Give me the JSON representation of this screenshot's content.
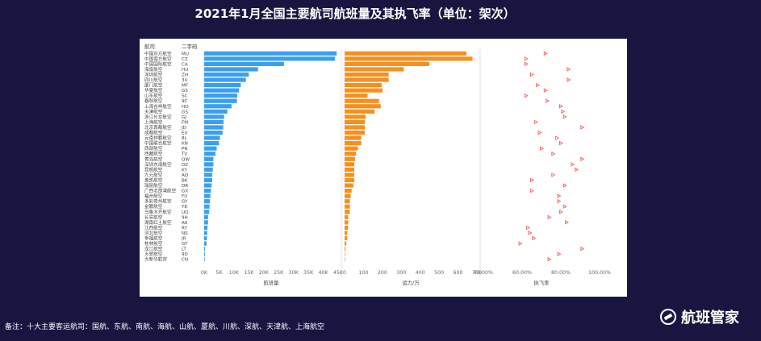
{
  "page": {
    "title": "2021年1月全国主要航司航班量及其执飞率（单位：架次）",
    "footnote": "备注：十大主要客运航司：国航、东航、南航、海航、山航、厦航、川航、深航、天津航、上海航空",
    "brand": "航班管家"
  },
  "chart_data": {
    "type": "bar",
    "columns": [
      "航司",
      "二字码"
    ],
    "airlines": [
      "中国东方航空",
      "中国南方航空",
      "中国国际航空",
      "海南航空",
      "深圳航空",
      "四川航空",
      "厦门航空",
      "华夏航空",
      "山东航空",
      "春秋航空",
      "上海吉祥航空",
      "天津航空",
      "浙江长龙航空",
      "上海航空",
      "北京首都航空",
      "成都航空",
      "云南祥鹏航空",
      "中国联合航空",
      "西部航空",
      "西藏航空",
      "青岛航空",
      "深圳东海航空",
      "昆明航空",
      "九元航空",
      "奥凯航空",
      "瑞丽航空",
      "广西北部湾航空",
      "福州航空",
      "多彩贵州航空",
      "金鹏航空",
      "乌鲁木齐航空",
      "长安航空",
      "湖南红土航空",
      "江西航空",
      "河北航空",
      "幸福航空",
      "桂林航空",
      "龙江航空",
      "天骄航空",
      "大新华航空"
    ],
    "codes": [
      "MU",
      "CZ",
      "CA",
      "HU",
      "ZH",
      "3U",
      "MF",
      "G5",
      "SC",
      "9C",
      "HO",
      "GS",
      "GJ",
      "FM",
      "JD",
      "EU",
      "8L",
      "KN",
      "PN",
      "TV",
      "QW",
      "DZ",
      "KY",
      "AQ",
      "BK",
      "DR",
      "GX",
      "FU",
      "GY",
      "Y8",
      "UQ",
      "9H",
      "A6",
      "RY",
      "NS",
      "JR",
      "GT",
      "LT",
      "9D",
      "CN"
    ],
    "series": [
      {
        "name": "航班量",
        "color": "#3a9ff0",
        "xlabel": "航班量",
        "xticks": [
          "0K",
          "5K",
          "10K",
          "15K",
          "20K",
          "25K",
          "30K",
          "35K",
          "40K",
          "45K"
        ],
        "xlim": [
          0,
          45000
        ],
        "values": [
          44500,
          43900,
          26800,
          18100,
          15000,
          14000,
          12300,
          11700,
          11100,
          11000,
          9200,
          7800,
          6700,
          6500,
          6400,
          6200,
          5300,
          5000,
          4200,
          3800,
          3100,
          3100,
          2900,
          2700,
          2700,
          2500,
          2300,
          2100,
          1900,
          1800,
          1700,
          1300,
          1300,
          1100,
          1000,
          900,
          800,
          300,
          250,
          200
        ]
      },
      {
        "name": "运力/万",
        "color": "#f5901f",
        "xlabel": "运力/万",
        "xticks": [
          "0",
          "100",
          "200",
          "300",
          "400",
          "500",
          "600",
          "700"
        ],
        "xlim": [
          0,
          750
        ],
        "values": [
          690,
          725,
          480,
          335,
          250,
          250,
          210,
          215,
          130,
          195,
          205,
          170,
          120,
          115,
          115,
          115,
          95,
          95,
          75,
          65,
          60,
          55,
          55,
          55,
          55,
          50,
          40,
          35,
          30,
          30,
          30,
          20,
          20,
          20,
          15,
          15,
          10,
          5,
          3,
          3
        ]
      },
      {
        "name": "执飞率",
        "color": "#e8534b",
        "xlabel": "执飞率",
        "xticks": [
          "40.00%",
          "60.00%",
          "80.00%",
          "100.00%"
        ],
        "xlim": [
          0.4,
          1.0
        ],
        "values": [
          0.72,
          0.62,
          0.62,
          0.84,
          0.65,
          0.84,
          0.68,
          0.72,
          0.62,
          0.73,
          0.8,
          0.81,
          0.82,
          0.67,
          0.91,
          0.69,
          0.78,
          0.8,
          0.7,
          0.76,
          0.91,
          0.86,
          0.88,
          0.76,
          0.65,
          0.82,
          0.65,
          0.79,
          0.79,
          0.82,
          0.8,
          0.74,
          0.83,
          0.63,
          0.64,
          0.66,
          0.59,
          0.91,
          0.79,
          0.74
        ]
      }
    ]
  }
}
